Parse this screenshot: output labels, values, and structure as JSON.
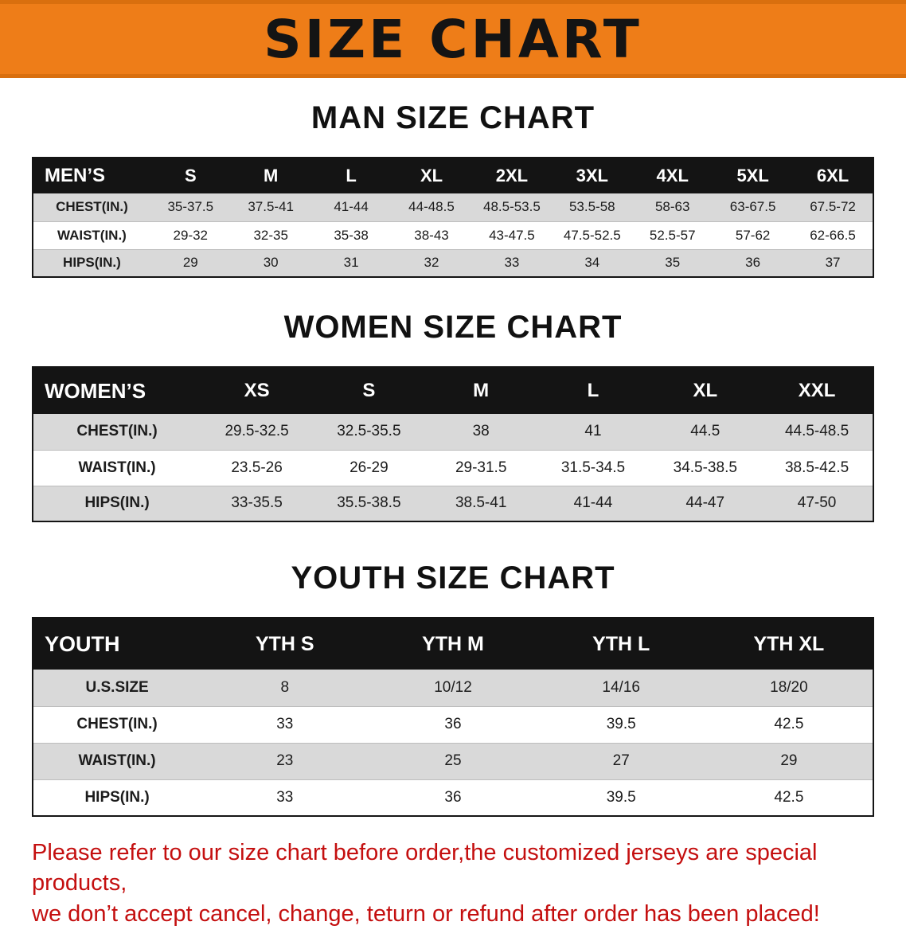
{
  "banner": {
    "title": "SIZE CHART",
    "bg_color": "#ee7d18",
    "text_color": "#141414"
  },
  "sections": [
    {
      "heading": "MAN SIZE CHART",
      "table": {
        "header_label": "MEN’S",
        "columns": [
          "S",
          "M",
          "L",
          "XL",
          "2XL",
          "3XL",
          "4XL",
          "5XL",
          "6XL"
        ],
        "rows": [
          {
            "label": "CHEST(IN.)",
            "values": [
              "35-37.5",
              "37.5-41",
              "41-44",
              "44-48.5",
              "48.5-53.5",
              "53.5-58",
              "58-63",
              "63-67.5",
              "67.5-72"
            ]
          },
          {
            "label": "WAIST(IN.)",
            "values": [
              "29-32",
              "32-35",
              "35-38",
              "38-43",
              "43-47.5",
              "47.5-52.5",
              "52.5-57",
              "57-62",
              "62-66.5"
            ]
          },
          {
            "label": "HIPS(IN.)",
            "values": [
              "29",
              "30",
              "31",
              "32",
              "33",
              "34",
              "35",
              "36",
              "37"
            ]
          }
        ]
      }
    },
    {
      "heading": "WOMEN SIZE CHART",
      "table": {
        "header_label": "WOMEN’S",
        "columns": [
          "XS",
          "S",
          "M",
          "L",
          "XL",
          "XXL"
        ],
        "rows": [
          {
            "label": "CHEST(IN.)",
            "values": [
              "29.5-32.5",
              "32.5-35.5",
              "38",
              "41",
              "44.5",
              "44.5-48.5"
            ]
          },
          {
            "label": "WAIST(IN.)",
            "values": [
              "23.5-26",
              "26-29",
              "29-31.5",
              "31.5-34.5",
              "34.5-38.5",
              "38.5-42.5"
            ]
          },
          {
            "label": "HIPS(IN.)",
            "values": [
              "33-35.5",
              "35.5-38.5",
              "38.5-41",
              "41-44",
              "44-47",
              "47-50"
            ]
          }
        ]
      }
    },
    {
      "heading": "YOUTH SIZE CHART",
      "table": {
        "header_label": "YOUTH",
        "columns": [
          "YTH S",
          "YTH M",
          "YTH L",
          "YTH XL"
        ],
        "rows": [
          {
            "label": "U.S.SIZE",
            "values": [
              "8",
              "10/12",
              "14/16",
              "18/20"
            ]
          },
          {
            "label": "CHEST(IN.)",
            "values": [
              "33",
              "36",
              "39.5",
              "42.5"
            ]
          },
          {
            "label": "WAIST(IN.)",
            "values": [
              "23",
              "25",
              "27",
              "29"
            ]
          },
          {
            "label": "HIPS(IN.)",
            "values": [
              "33",
              "36",
              "39.5",
              "42.5"
            ]
          }
        ]
      }
    }
  ],
  "footer": {
    "line1": "Please refer to our size chart before order,the customized jerseys are special products,",
    "line2": "we don’t accept cancel, change, teturn or refund after order has been placed!",
    "color": "#c40f0f"
  }
}
